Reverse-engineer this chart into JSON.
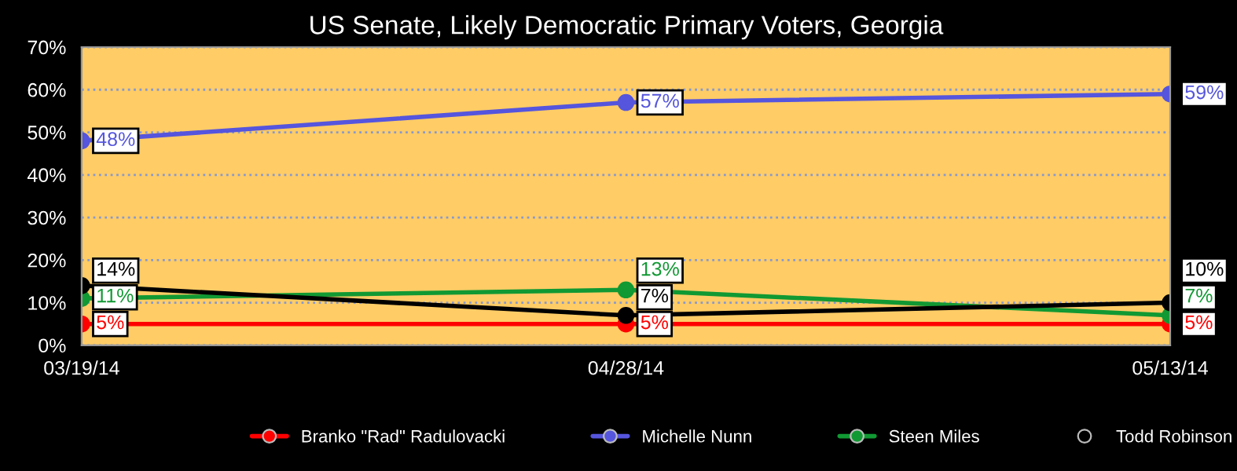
{
  "chart_data": {
    "type": "line",
    "title": "US Senate, Likely Democratic Primary Voters, Georgia",
    "categories": [
      "03/19/14",
      "04/28/14",
      "05/13/14"
    ],
    "series": [
      {
        "name": "Branko \"Rad\" Radulovacki",
        "color": "#ff0000",
        "values": [
          5,
          5,
          5
        ],
        "value_labels": [
          "5%",
          "5%",
          "5%"
        ]
      },
      {
        "name": "Michelle Nunn",
        "color": "#5555dd",
        "values": [
          48,
          57,
          59
        ],
        "value_labels": [
          "48%",
          "57%",
          "59%"
        ]
      },
      {
        "name": "Steen Miles",
        "color": "#119933",
        "values": [
          11,
          13,
          7
        ],
        "value_labels": [
          "11%",
          "13%",
          "7%"
        ]
      },
      {
        "name": "Todd Robinson",
        "color": "#000000",
        "values": [
          14,
          7,
          10
        ],
        "value_labels": [
          "14%",
          "7%",
          "10%"
        ]
      }
    ],
    "ylim": [
      0,
      70
    ],
    "yticks": [
      {
        "value": 0,
        "label": "0%"
      },
      {
        "value": 10,
        "label": "10%"
      },
      {
        "value": 20,
        "label": "20%"
      },
      {
        "value": 30,
        "label": "30%"
      },
      {
        "value": 40,
        "label": "40%"
      },
      {
        "value": 50,
        "label": "50%"
      },
      {
        "value": 60,
        "label": "60%"
      },
      {
        "value": 70,
        "label": "70%"
      }
    ],
    "grid": "y",
    "legend": "bottom",
    "marker": "circle",
    "line_style": "solid"
  }
}
